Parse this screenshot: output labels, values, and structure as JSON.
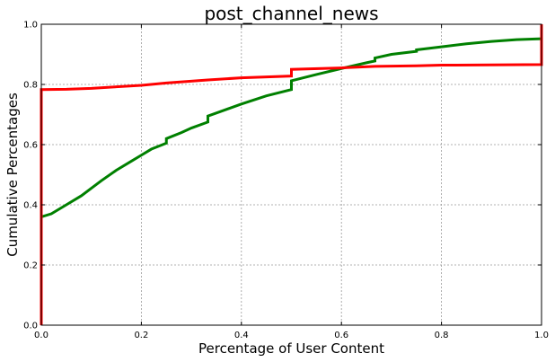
{
  "chart_data": {
    "type": "line",
    "title": "post_channel_news",
    "xlabel": "Percentage of User Content",
    "ylabel": "Cumulative Percentages",
    "xlim": [
      0,
      1
    ],
    "ylim": [
      0,
      1
    ],
    "x_ticks": [
      "0.0",
      "0.2",
      "0.4",
      "0.6",
      "0.8",
      "1.0"
    ],
    "y_ticks": [
      "0.0",
      "0.2",
      "0.4",
      "0.6",
      "0.8",
      "1.0"
    ],
    "grid": true,
    "legend": "none",
    "series": [
      {
        "color": "#008000",
        "style": "step",
        "x": [
          0.0,
          0.02,
          0.05,
          0.08,
          0.1,
          0.12,
          0.15,
          0.18,
          0.2,
          0.22,
          0.25,
          0.25,
          0.28,
          0.3,
          0.333,
          0.333,
          0.35,
          0.4,
          0.45,
          0.5,
          0.5,
          0.55,
          0.6,
          0.65,
          0.667,
          0.667,
          0.7,
          0.75,
          0.75,
          0.8,
          0.85,
          0.9,
          0.95,
          1.0
        ],
        "y": [
          0.36,
          0.37,
          0.4,
          0.43,
          0.455,
          0.48,
          0.515,
          0.545,
          0.565,
          0.585,
          0.605,
          0.62,
          0.64,
          0.655,
          0.675,
          0.695,
          0.705,
          0.735,
          0.762,
          0.783,
          0.812,
          0.833,
          0.853,
          0.872,
          0.878,
          0.888,
          0.9,
          0.91,
          0.915,
          0.925,
          0.935,
          0.943,
          0.949,
          0.952
        ]
      },
      {
        "color": "#ff0000",
        "style": "step",
        "x": [
          0.0,
          0.0,
          0.05,
          0.1,
          0.15,
          0.2,
          0.25,
          0.333,
          0.4,
          0.5,
          0.5,
          0.6,
          0.667,
          0.75,
          0.8,
          1.0,
          1.0
        ],
        "y": [
          0.0,
          0.783,
          0.784,
          0.787,
          0.792,
          0.797,
          0.805,
          0.815,
          0.822,
          0.828,
          0.85,
          0.855,
          0.86,
          0.862,
          0.864,
          0.866,
          1.0
        ]
      }
    ]
  }
}
